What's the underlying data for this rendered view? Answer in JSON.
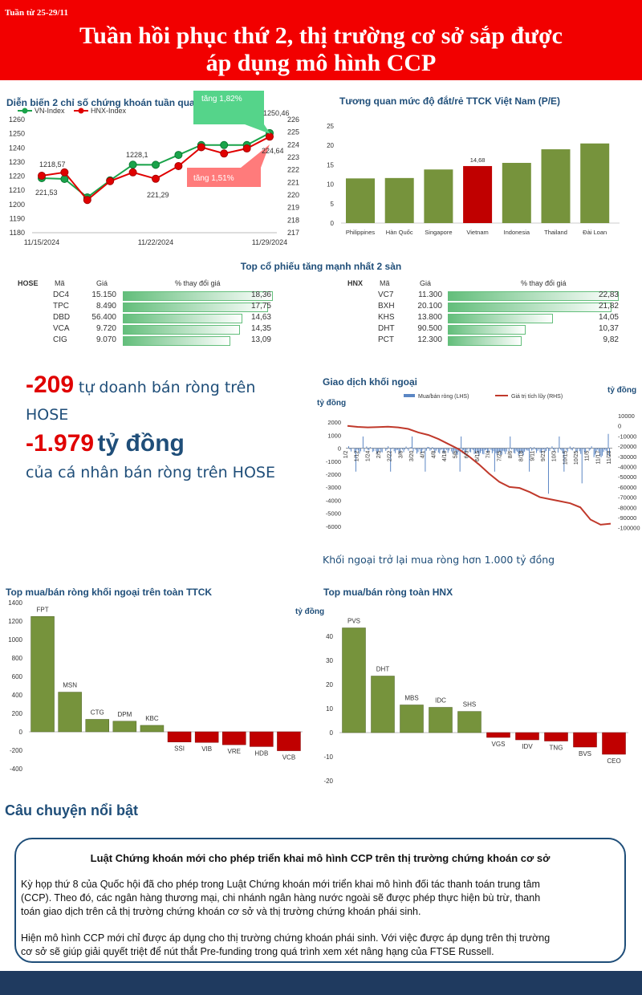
{
  "header": {
    "week": "Tuần từ 25-29/11",
    "title_line1": "Tuần hồi phục thứ 2, thị trường cơ sở sắp được",
    "title_line2": "áp dụng mô hình CCP",
    "bg_color": "#f20000"
  },
  "index_chart": {
    "title": "Diễn biến 2 chỉ số chứng khoán tuần qua",
    "callout_vn": "tăng 1,82%",
    "callout_hnx": "tăng 1,51%",
    "labels": {
      "vn_start": "1218,57",
      "hnx_start": "221,53",
      "vn_mid": "1228,1",
      "hnx_mid": "221,29",
      "vn_end": "1250,46",
      "hnx_end": "224,64"
    }
  },
  "pe_chart": {
    "title": "Tương quan mức độ đắt/rẻ TTCK Việt Nam (P/E)",
    "vn_label": "14,68"
  },
  "top_gainers": {
    "title": "Top cổ phiếu tăng mạnh nhất 2 sàn",
    "hose_label": "HOSE",
    "hnx_label": "HNX",
    "col_code": "Mã",
    "col_price": "Giá",
    "col_change": "% thay đổi giá",
    "hose": [
      {
        "code": "DC4",
        "price": "15.150",
        "change": "18,36",
        "pct": 18.36
      },
      {
        "code": "TPC",
        "price": "8.490",
        "change": "17,75",
        "pct": 17.75
      },
      {
        "code": "DBD",
        "price": "56.400",
        "change": "14,63",
        "pct": 14.63
      },
      {
        "code": "VCA",
        "price": "9.720",
        "change": "14,35",
        "pct": 14.35
      },
      {
        "code": "CIG",
        "price": "9.070",
        "change": "13,09",
        "pct": 13.09
      }
    ],
    "hnx": [
      {
        "code": "VC7",
        "price": "11.300",
        "change": "22,83",
        "pct": 22.83
      },
      {
        "code": "BXH",
        "price": "20.100",
        "change": "21,82",
        "pct": 21.82
      },
      {
        "code": "KHS",
        "price": "13.800",
        "change": "14,05",
        "pct": 14.05
      },
      {
        "code": "DHT",
        "price": "90.500",
        "change": "10,37",
        "pct": 10.37
      },
      {
        "code": "PCT",
        "price": "12.300",
        "change": "9,82",
        "pct": 9.82
      }
    ]
  },
  "highlights": {
    "line1_num": "-209",
    "line1_text": "tự doanh bán ròng trên",
    "line2_text": "HOSE",
    "line3_num": "-1.979",
    "line3_unit": "tỷ đồng",
    "line4_text": "của cá nhân bán ròng trên HOSE"
  },
  "foreign_chart": {
    "title": "Giao dịch khối ngoại",
    "unit_left": "tỷ đồng",
    "unit_right": "tỷ đồng",
    "legend_bar": "Mua/bán ròng (LHS)",
    "legend_line": "Giá trị tích lũy (RHS)",
    "caption": "Khối ngoại trở lại mua ròng hơn 1.000 tỷ đồng"
  },
  "foreign_top_title": "Top mua/bán ròng khối ngoại trên toàn TTCK",
  "hnx_top": {
    "title": "Top mua/bán ròng toàn HNX",
    "unit": "tỷ đồng"
  },
  "story": {
    "heading": "Câu chuyện nổi bật",
    "box_title": "Luật Chứng khoán mới cho phép triển khai mô hình CCP trên thị trường chứng khoán cơ sở",
    "para1_l1": "Kỳ họp thứ 8 của Quốc hội đã cho phép trong Luật Chứng khoán mới triển khai mô hình đối tác thanh toán trung tâm",
    "para1_l2": "(CCP). Theo đó, các ngân hàng thương mại, chi nhánh ngân hàng nước ngoài sẽ được phép thực hiện bù trừ, thanh",
    "para1_l3": "toán giao dịch trên cả thị trường chứng khoán cơ sở và thị trường chứng khoán phái sinh.",
    "para2_l1": "Hiện mô hình CCP mới chỉ được áp dụng cho thị trường chứng khoán phái sinh. Với việc được áp dụng trên thị trường",
    "para2_l2": "cơ sở sẽ giúp giải quyết triệt để nút thắt Pre-funding trong quá trình xem xét nâng hạng của FTSE Russell."
  },
  "chart_data": [
    {
      "type": "line",
      "title": "Diễn biến 2 chỉ số chứng khoán tuần qua",
      "x_ticks": [
        "11/15/2024",
        "11/22/2024",
        "11/29/2024"
      ],
      "series": [
        {
          "name": "VN-Index",
          "axis": "left",
          "color": "#1aa34a",
          "values": [
            1218.57,
            1218,
            1205,
            1217,
            1228.1,
            1228,
            1235,
            1242,
            1242,
            1242,
            1250.46
          ]
        },
        {
          "name": "HNX-Index",
          "axis": "right",
          "color": "#e00000",
          "values": [
            221.53,
            221.8,
            219.6,
            221.1,
            221.8,
            221.29,
            222.3,
            223.8,
            223.3,
            223.7,
            224.64
          ]
        }
      ],
      "ylim_left": [
        1180,
        1260
      ],
      "yticks_left": [
        "1180",
        "1190",
        "1200",
        "1210",
        "1220",
        "1230",
        "1240",
        "1250",
        "1260"
      ],
      "ylim_right": [
        217,
        226
      ],
      "yticks_right": [
        "217",
        "218",
        "219",
        "220",
        "221",
        "222",
        "223",
        "224",
        "225",
        "226"
      ]
    },
    {
      "type": "bar",
      "title": "Tương quan mức độ đắt/rẻ TTCK Việt Nam (P/E)",
      "categories": [
        "Philippines",
        "Hàn Quốc",
        "Singapore",
        "Vietnam",
        "Indonesia",
        "Thailand",
        "Đài Loan"
      ],
      "values": [
        11.5,
        11.6,
        13.8,
        14.68,
        15.5,
        19.0,
        20.5
      ],
      "highlight": "Vietnam",
      "ylim": [
        0,
        25
      ],
      "yticks": [
        "0",
        "5",
        "10",
        "15",
        "20",
        "25"
      ]
    },
    {
      "type": "bar",
      "title": "Giao dịch khối ngoại",
      "xlabels": [
        "1/2",
        "1/12",
        "1/24",
        "2/5",
        "2/22",
        "3/6",
        "3/20",
        "4/1",
        "4/8",
        "4/18",
        "5/6",
        "6/3",
        "6/15",
        "7/4",
        "7/25",
        "8/6",
        "8/18",
        "9/11",
        "9/23",
        "10/3",
        "10/15",
        "10/25",
        "11/5",
        "11/17",
        "11/28"
      ],
      "yticks_left": [
        "2000",
        "1000",
        "0",
        "-1000",
        "-2000",
        "-3000",
        "-4000",
        "-5000",
        "-6000"
      ],
      "yticks_right": [
        "10000",
        "0",
        "-10000",
        "-20000",
        "-30000",
        "-40000",
        "-50000",
        "-60000",
        "-70000",
        "-80000",
        "-90000",
        "-100000"
      ],
      "ylim_left": [
        -6500,
        2500
      ],
      "ylim_right": [
        -105000,
        10000
      ],
      "line_cumulative": [
        0,
        -1000,
        -1500,
        -1200,
        -800,
        -1500,
        -3000,
        -6500,
        -9000,
        -13000,
        -18000,
        -23000,
        -30000,
        -38000,
        -47000,
        -55000,
        -60000,
        -61000,
        -65000,
        -70000,
        -72000,
        -74000,
        -76000,
        -80000,
        -92000,
        -97000,
        -96000
      ]
    },
    {
      "type": "bar",
      "title": "Top mua/bán ròng khối ngoại trên toàn TTCK",
      "categories": [
        "FPT",
        "MSN",
        "CTG",
        "DPM",
        "KBC",
        "SSI",
        "VIB",
        "VRE",
        "HDB",
        "VCB"
      ],
      "values": [
        1250,
        430,
        135,
        115,
        70,
        -110,
        -115,
        -140,
        -160,
        -205
      ],
      "ylim": [
        -400,
        1400
      ],
      "yticks": [
        "-400",
        "-200",
        "0",
        "200",
        "400",
        "600",
        "800",
        "1000",
        "1200",
        "1400"
      ]
    },
    {
      "type": "bar",
      "title": "Top mua/bán ròng toàn HNX",
      "categories": [
        "PVS",
        "DHT",
        "MBS",
        "IDC",
        "SHS",
        "VGS",
        "IDV",
        "TNG",
        "BVS",
        "CEO"
      ],
      "values": [
        43.5,
        23.5,
        11.5,
        10.5,
        8.8,
        -2,
        -3,
        -3.5,
        -6,
        -9
      ],
      "ylim": [
        -20,
        50
      ],
      "yticks": [
        "-20",
        "-10",
        "0",
        "10",
        "20",
        "30",
        "40"
      ]
    }
  ]
}
